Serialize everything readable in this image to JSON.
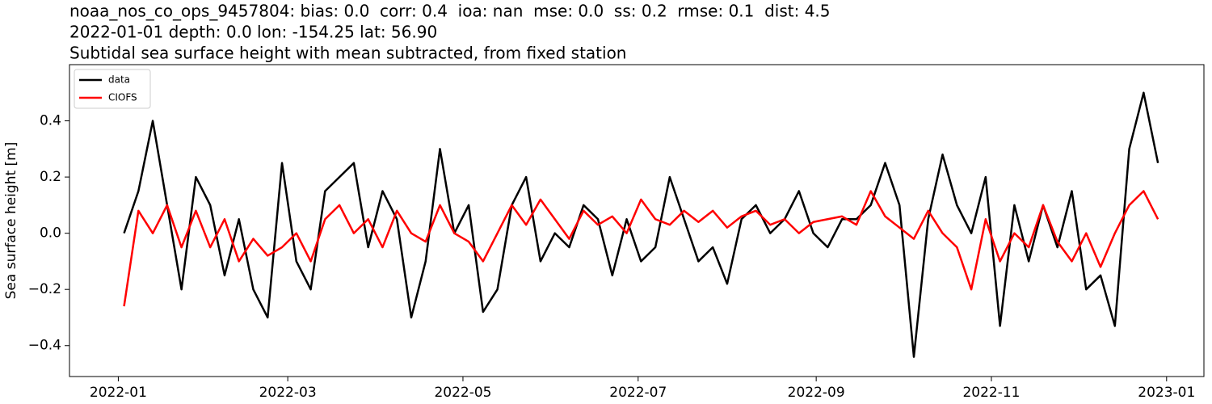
{
  "chart_data": {
    "type": "line",
    "title": [
      "noaa_nos_co_ops_9457804: bias: 0.0  corr: 0.4  ioa: nan  mse: 0.0  ss: 0.2  rmse: 0.1  dist: 4.5",
      "2022-01-01 depth: 0.0 lon: -154.25 lat: 56.90",
      "Subtidal sea surface height with mean subtracted, from fixed station"
    ],
    "y_label": "Sea surface height [m]",
    "x": [
      "2022-01-03",
      "2022-01-08",
      "2022-01-13",
      "2022-01-18",
      "2022-01-23",
      "2022-01-28",
      "2022-02-02",
      "2022-02-07",
      "2022-02-12",
      "2022-02-17",
      "2022-02-22",
      "2022-02-27",
      "2022-03-04",
      "2022-03-09",
      "2022-03-14",
      "2022-03-19",
      "2022-03-24",
      "2022-03-29",
      "2022-04-03",
      "2022-04-08",
      "2022-04-13",
      "2022-04-18",
      "2022-04-23",
      "2022-04-28",
      "2022-05-03",
      "2022-05-08",
      "2022-05-13",
      "2022-05-18",
      "2022-05-23",
      "2022-05-28",
      "2022-06-02",
      "2022-06-07",
      "2022-06-12",
      "2022-06-17",
      "2022-06-22",
      "2022-06-27",
      "2022-07-02",
      "2022-07-07",
      "2022-07-12",
      "2022-07-17",
      "2022-07-22",
      "2022-07-27",
      "2022-08-01",
      "2022-08-06",
      "2022-08-11",
      "2022-08-16",
      "2022-08-21",
      "2022-08-26",
      "2022-08-31",
      "2022-09-05",
      "2022-09-10",
      "2022-09-15",
      "2022-09-20",
      "2022-09-25",
      "2022-09-30",
      "2022-10-05",
      "2022-10-10",
      "2022-10-15",
      "2022-10-20",
      "2022-10-25",
      "2022-10-30",
      "2022-11-04",
      "2022-11-09",
      "2022-11-14",
      "2022-11-19",
      "2022-11-24",
      "2022-11-29",
      "2022-12-04",
      "2022-12-09",
      "2022-12-14",
      "2022-12-19",
      "2022-12-24",
      "2022-12-29"
    ],
    "series": [
      {
        "name": "data",
        "color": "#000000",
        "values": [
          0.0,
          0.15,
          0.4,
          0.1,
          -0.2,
          0.2,
          0.1,
          -0.15,
          0.05,
          -0.2,
          -0.3,
          0.25,
          -0.1,
          -0.2,
          0.15,
          0.2,
          0.25,
          -0.05,
          0.15,
          0.05,
          -0.3,
          -0.1,
          0.3,
          0.0,
          0.1,
          -0.28,
          -0.2,
          0.1,
          0.2,
          -0.1,
          0.0,
          -0.05,
          0.1,
          0.05,
          -0.15,
          0.05,
          -0.1,
          -0.05,
          0.2,
          0.05,
          -0.1,
          -0.05,
          -0.18,
          0.05,
          0.1,
          0.0,
          0.05,
          0.15,
          0.0,
          -0.05,
          0.05,
          0.05,
          0.1,
          0.25,
          0.1,
          -0.44,
          0.05,
          0.28,
          0.1,
          0.0,
          0.2,
          -0.33,
          0.1,
          -0.1,
          0.1,
          -0.05,
          0.15,
          -0.2,
          -0.15,
          -0.33,
          0.3,
          0.5,
          0.25
        ]
      },
      {
        "name": "CIOFS",
        "color": "#ff0000",
        "values": [
          -0.26,
          0.08,
          0.0,
          0.1,
          -0.05,
          0.08,
          -0.05,
          0.05,
          -0.1,
          -0.02,
          -0.08,
          -0.05,
          0.0,
          -0.1,
          0.05,
          0.1,
          0.0,
          0.05,
          -0.05,
          0.08,
          0.0,
          -0.03,
          0.1,
          0.0,
          -0.03,
          -0.1,
          0.0,
          0.1,
          0.03,
          0.12,
          0.05,
          -0.02,
          0.08,
          0.03,
          0.06,
          0.0,
          0.12,
          0.05,
          0.03,
          0.08,
          0.04,
          0.08,
          0.02,
          0.06,
          0.08,
          0.03,
          0.05,
          0.0,
          0.04,
          0.05,
          0.06,
          0.03,
          0.15,
          0.06,
          0.02,
          -0.02,
          0.08,
          0.0,
          -0.05,
          -0.2,
          0.05,
          -0.1,
          0.0,
          -0.05,
          0.1,
          -0.03,
          -0.1,
          0.0,
          -0.12,
          0.0,
          0.1,
          0.15,
          0.05
        ]
      }
    ],
    "xlim": [
      "2021-12-15",
      "2023-01-14"
    ],
    "xticks": [
      {
        "value": "2022-01-01",
        "label": "2022-01"
      },
      {
        "value": "2022-03-01",
        "label": "2022-03"
      },
      {
        "value": "2022-05-01",
        "label": "2022-05"
      },
      {
        "value": "2022-07-01",
        "label": "2022-07"
      },
      {
        "value": "2022-09-01",
        "label": "2022-09"
      },
      {
        "value": "2022-11-01",
        "label": "2022-11"
      },
      {
        "value": "2023-01-01",
        "label": "2023-01"
      }
    ],
    "ylim": [
      -0.51,
      0.6
    ],
    "yticks": [
      {
        "value": -0.4,
        "label": "−0.4"
      },
      {
        "value": -0.2,
        "label": "−0.2"
      },
      {
        "value": 0,
        "label": "0.0"
      },
      0.2,
      0.4
    ],
    "legend": "upper left"
  }
}
